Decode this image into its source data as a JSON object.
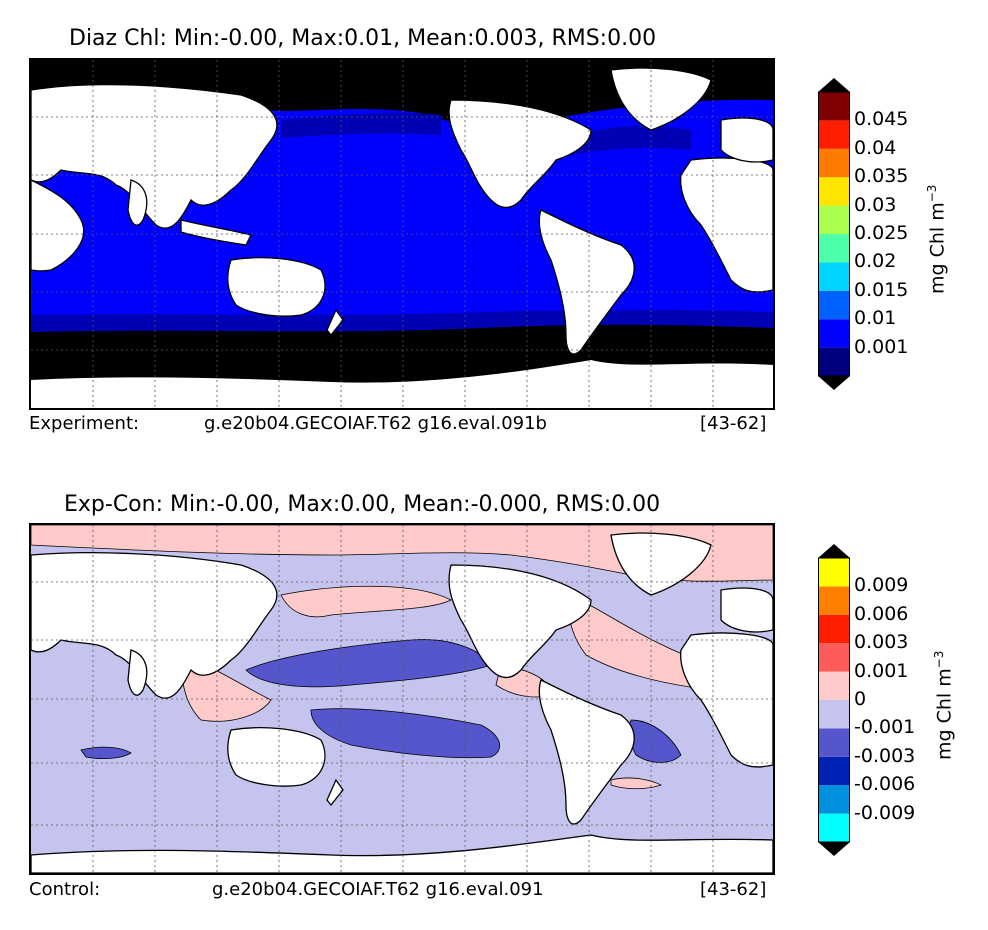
{
  "panels": [
    {
      "title": "Diaz Chl: Min:-0.00, Max:0.01, Mean:0.003, RMS:0.00",
      "caption_left": "Experiment:",
      "caption_case": "g.e20b04.GECOIAF.T62 g16.eval.091b",
      "caption_years": "[43-62]",
      "colorbar": {
        "unit": "mg Chl m",
        "unit_exp": "−3",
        "colors": [
          "#00007f",
          "#0000ff",
          "#0063ff",
          "#00d5ff",
          "#4dffaa",
          "#aaff4d",
          "#ffe500",
          "#ff7a00",
          "#ff1e00",
          "#7f0000"
        ],
        "ticks": [
          "0.001",
          "0.01",
          "0.015",
          "0.02",
          "0.025",
          "0.03",
          "0.035",
          "0.04",
          "0.045"
        ]
      },
      "map_colors": {
        "ocean_main": "#0000ff",
        "ocean_mid": "#0000b4",
        "ocean_polar": "#000000",
        "land": "#ffffff"
      }
    },
    {
      "title": "Exp-Con: Min:-0.00, Max:0.00, Mean:-0.000, RMS:0.00",
      "caption_left": "Control:",
      "caption_case": "g.e20b04.GECOIAF.T62 g16.eval.091",
      "caption_years": "[43-62]",
      "colorbar": {
        "unit": "mg Chl m",
        "unit_exp": "−3",
        "colors": [
          "#00ffff",
          "#0090dd",
          "#0022b5",
          "#5555cc",
          "#c4c4ee",
          "#ffcaca",
          "#ff5b5b",
          "#ff1e00",
          "#ff8000",
          "#ffff00"
        ],
        "ticks": [
          "-0.009",
          "-0.006",
          "-0.003",
          "-0.001",
          "0",
          "0.001",
          "0.003",
          "0.006",
          "0.009"
        ]
      },
      "map_colors": {
        "ocean_main": "#c4c4ee",
        "neg_patch": "#5555cc",
        "pos_patch": "#ffcaca",
        "land": "#ffffff"
      }
    }
  ]
}
